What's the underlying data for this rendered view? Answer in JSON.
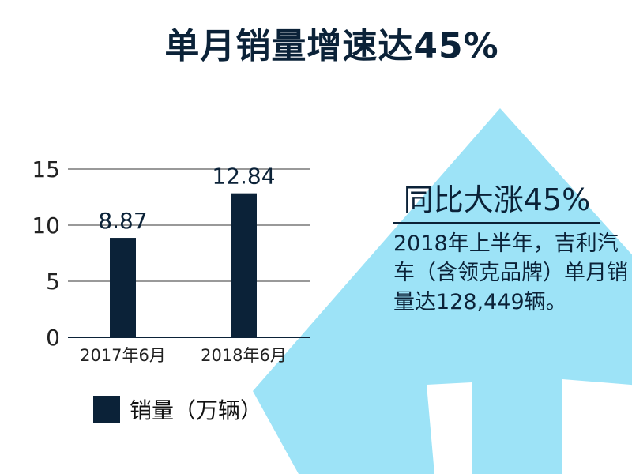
{
  "title": "单月销量增速达45%",
  "chart_data": {
    "type": "bar",
    "categories": [
      "2017年6月",
      "2018年6月"
    ],
    "series": [
      {
        "name": "销量（万辆）",
        "values": [
          8.87,
          12.84
        ]
      }
    ],
    "data_labels": [
      "8.87",
      "12.84"
    ],
    "ylim": [
      0,
      15
    ],
    "yticks": [
      0,
      5,
      10,
      15
    ],
    "grid": true,
    "legend_position": "bottom-left",
    "bar_color": "#0b2238"
  },
  "legend": {
    "label": "销量（万辆）",
    "color": "#0b2238"
  },
  "callout": {
    "headline": "同比大涨45%",
    "text": "2018年上半年，吉利汽车（含领克品牌）单月销量达128,449辆。"
  },
  "colors": {
    "accent": "#9de3f7",
    "primary": "#0b2238"
  }
}
